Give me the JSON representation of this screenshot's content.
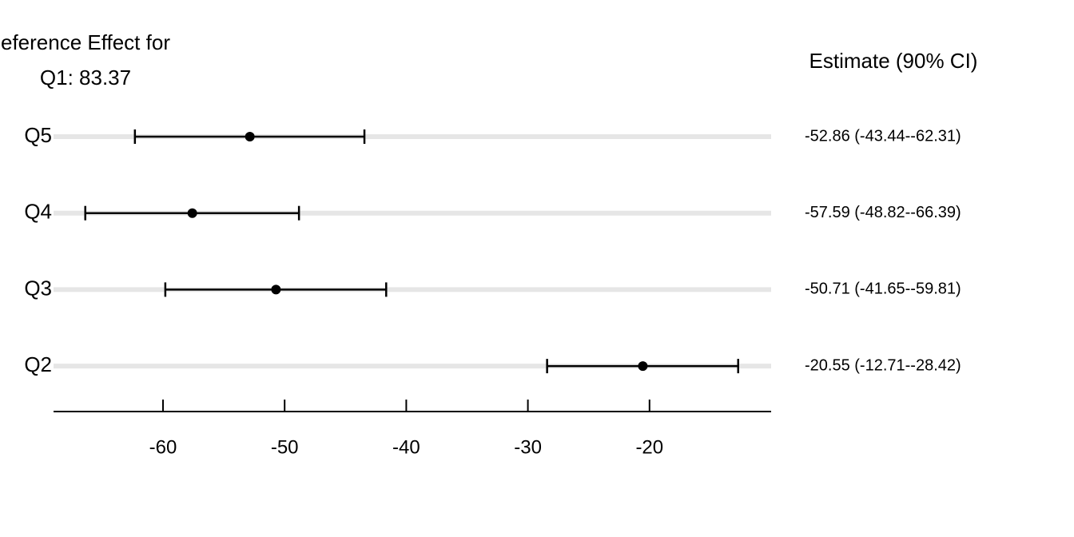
{
  "chart_data": {
    "type": "forest",
    "title": [
      "eference Effect for",
      "Q1: 83.37"
    ],
    "column_header": "Estimate (90% CI)",
    "categories": [
      "Q5",
      "Q4",
      "Q3",
      "Q2"
    ],
    "values": [
      -52.86,
      -57.59,
      -50.71,
      -20.55
    ],
    "lower": [
      -62.31,
      -66.39,
      -59.81,
      -28.42
    ],
    "upper": [
      -43.44,
      -48.82,
      -41.65,
      -12.71
    ],
    "value_labels": [
      "-52.86 (-43.44--62.31)",
      "-57.59 (-48.82--66.39)",
      "-50.71 (-41.65--59.81)",
      "-20.55 (-12.71--28.42)"
    ],
    "color": "#000000",
    "band_color": "#e6e6e6",
    "xlim": [
      -69,
      -10
    ],
    "xticks": [
      -60,
      -50,
      -40,
      -30,
      -20
    ]
  }
}
